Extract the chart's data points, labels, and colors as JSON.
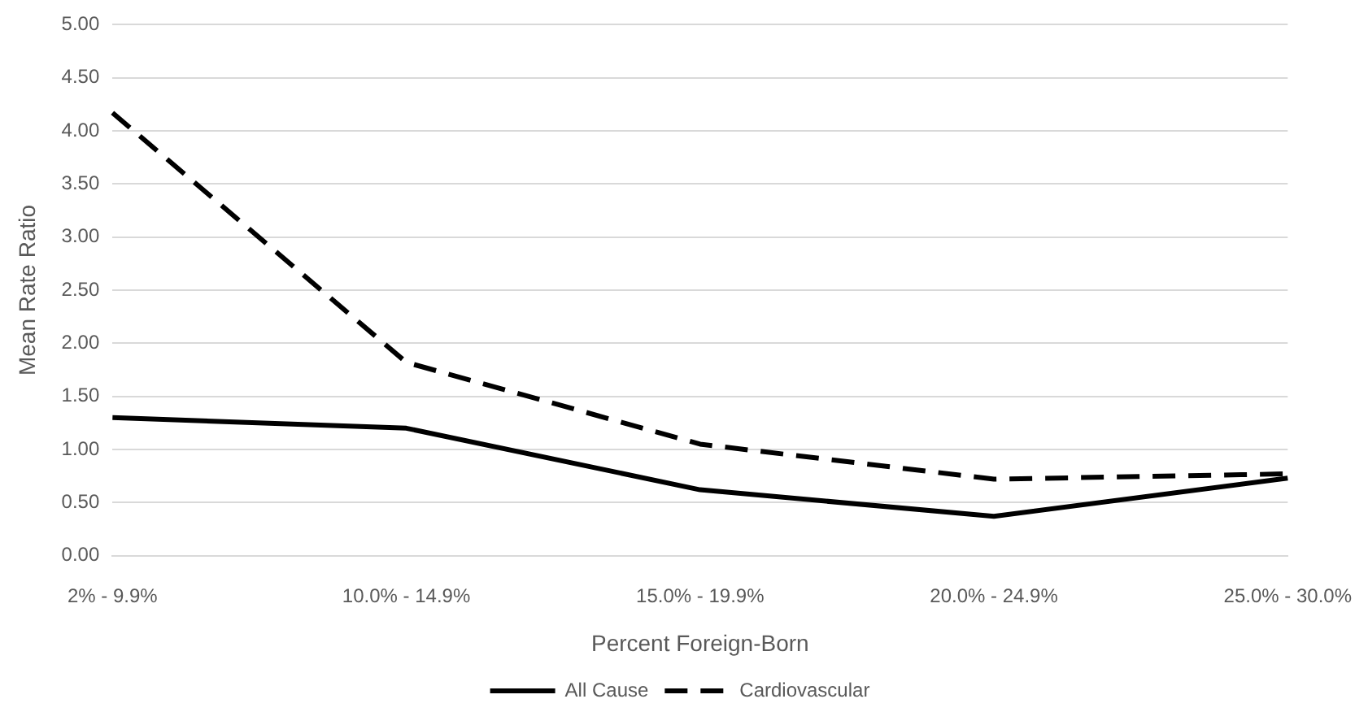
{
  "chart_data": {
    "type": "line",
    "xlabel": "Percent Foreign-Born",
    "ylabel": "Mean Rate Ratio",
    "categories": [
      "2% - 9.9%",
      "10.0% - 14.9%",
      "15.0% - 19.9%",
      "20.0% - 24.9%",
      "25.0% - 30.0%"
    ],
    "series": [
      {
        "name": "All Cause",
        "color": "#000000",
        "values": [
          1.3,
          1.2,
          0.62,
          0.37,
          0.73
        ],
        "line_style": "solid"
      },
      {
        "name": "Cardiovascular",
        "color": "#000000",
        "values": [
          4.17,
          1.82,
          1.05,
          0.72,
          0.77
        ],
        "line_style": "dashed"
      }
    ],
    "ylim": [
      0,
      5
    ],
    "yticks": [
      {
        "value": 0,
        "label": "0.00"
      },
      {
        "value": 0.5,
        "label": "0.50"
      },
      {
        "value": 1,
        "label": "1.00"
      },
      {
        "value": 1.5,
        "label": "1.50"
      },
      {
        "value": 2,
        "label": "2.00"
      },
      {
        "value": 2.5,
        "label": "2.50"
      },
      {
        "value": 3,
        "label": "3.00"
      },
      {
        "value": 3.5,
        "label": "3.50"
      },
      {
        "value": 4,
        "label": "4.00"
      },
      {
        "value": 4.5,
        "label": "4.50"
      },
      {
        "value": 5,
        "label": "5.00"
      }
    ],
    "grid": "y",
    "legend": "bottom",
    "marker": "none"
  }
}
